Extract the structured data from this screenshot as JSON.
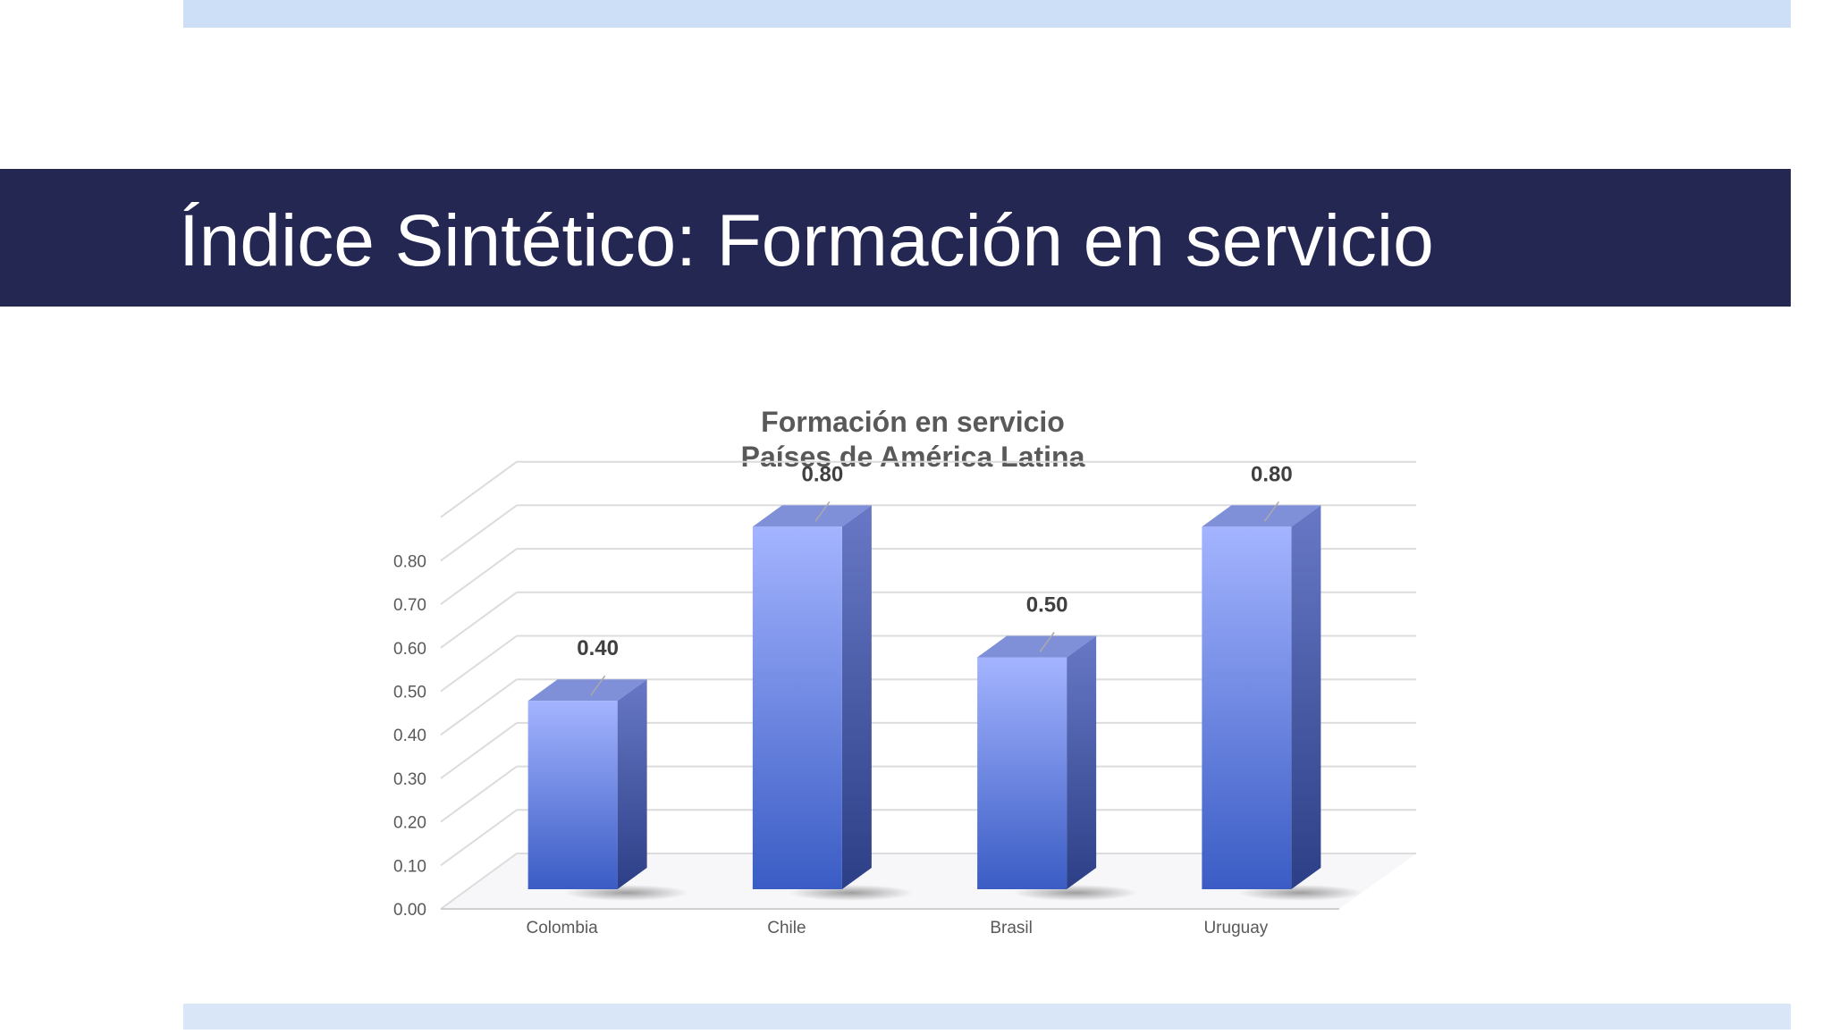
{
  "slide": {
    "title": "Índice Sintético: Formación en servicio"
  },
  "colors": {
    "title_bar": "#252753",
    "band": "#cddff7",
    "bar_front_top": "#a4b4ff",
    "bar_front_bottom": "#3a5cc4",
    "bar_side": "#34478f",
    "bar_top": "#7f8fd8"
  },
  "chart_data": {
    "type": "bar",
    "title": "Formación en servicio",
    "subtitle": "Países de América Latina",
    "categories": [
      "Colombia",
      "Chile",
      "Brasil",
      "Uruguay"
    ],
    "values": [
      0.4,
      0.8,
      0.5,
      0.8
    ],
    "data_labels": [
      "0.40",
      "0.80",
      "0.50",
      "0.80"
    ],
    "y_ticks": [
      "0.00",
      "0.10",
      "0.20",
      "0.30",
      "0.40",
      "0.50",
      "0.60",
      "0.70",
      "0.80"
    ],
    "ylim": [
      0,
      0.9
    ],
    "grid": true,
    "legend": "none",
    "style": "3d"
  }
}
